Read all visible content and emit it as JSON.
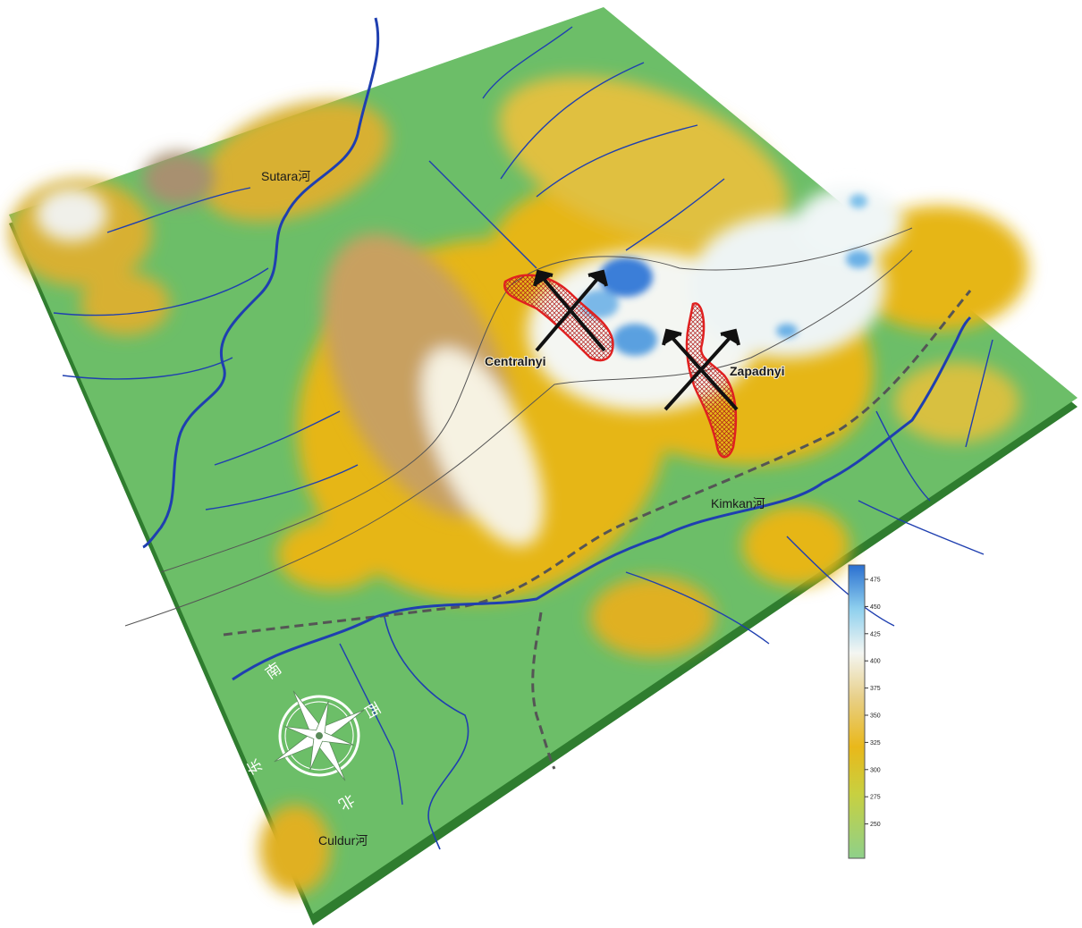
{
  "rivers": {
    "sutara": "Sutara河",
    "kimkan": "Kimkan河",
    "culdur": "Culdur河"
  },
  "deposits": [
    {
      "name": "Centralnyi",
      "icon": "crossed-hammers-icon"
    },
    {
      "name": "Zapadnyi",
      "icon": "crossed-hammers-icon"
    }
  ],
  "compass": {
    "icon": "compass-rose-icon",
    "directions": {
      "south": "南",
      "west": "西",
      "east": "东",
      "north": "北"
    }
  },
  "legend": {
    "ticks": [
      "475",
      "450",
      "425",
      "400",
      "375",
      "350",
      "325",
      "300",
      "275",
      "250"
    ],
    "colors": {
      "high": "#2a6fd0",
      "upper": "#8fd0ee",
      "white": "#f4f6f2",
      "mid": "#e9b81a",
      "low": "#5fbf5f"
    }
  },
  "colors": {
    "river": "#1f3fb0",
    "ore_outline": "#e02020",
    "boundary": "#555555",
    "base": "#2f7d2f"
  }
}
